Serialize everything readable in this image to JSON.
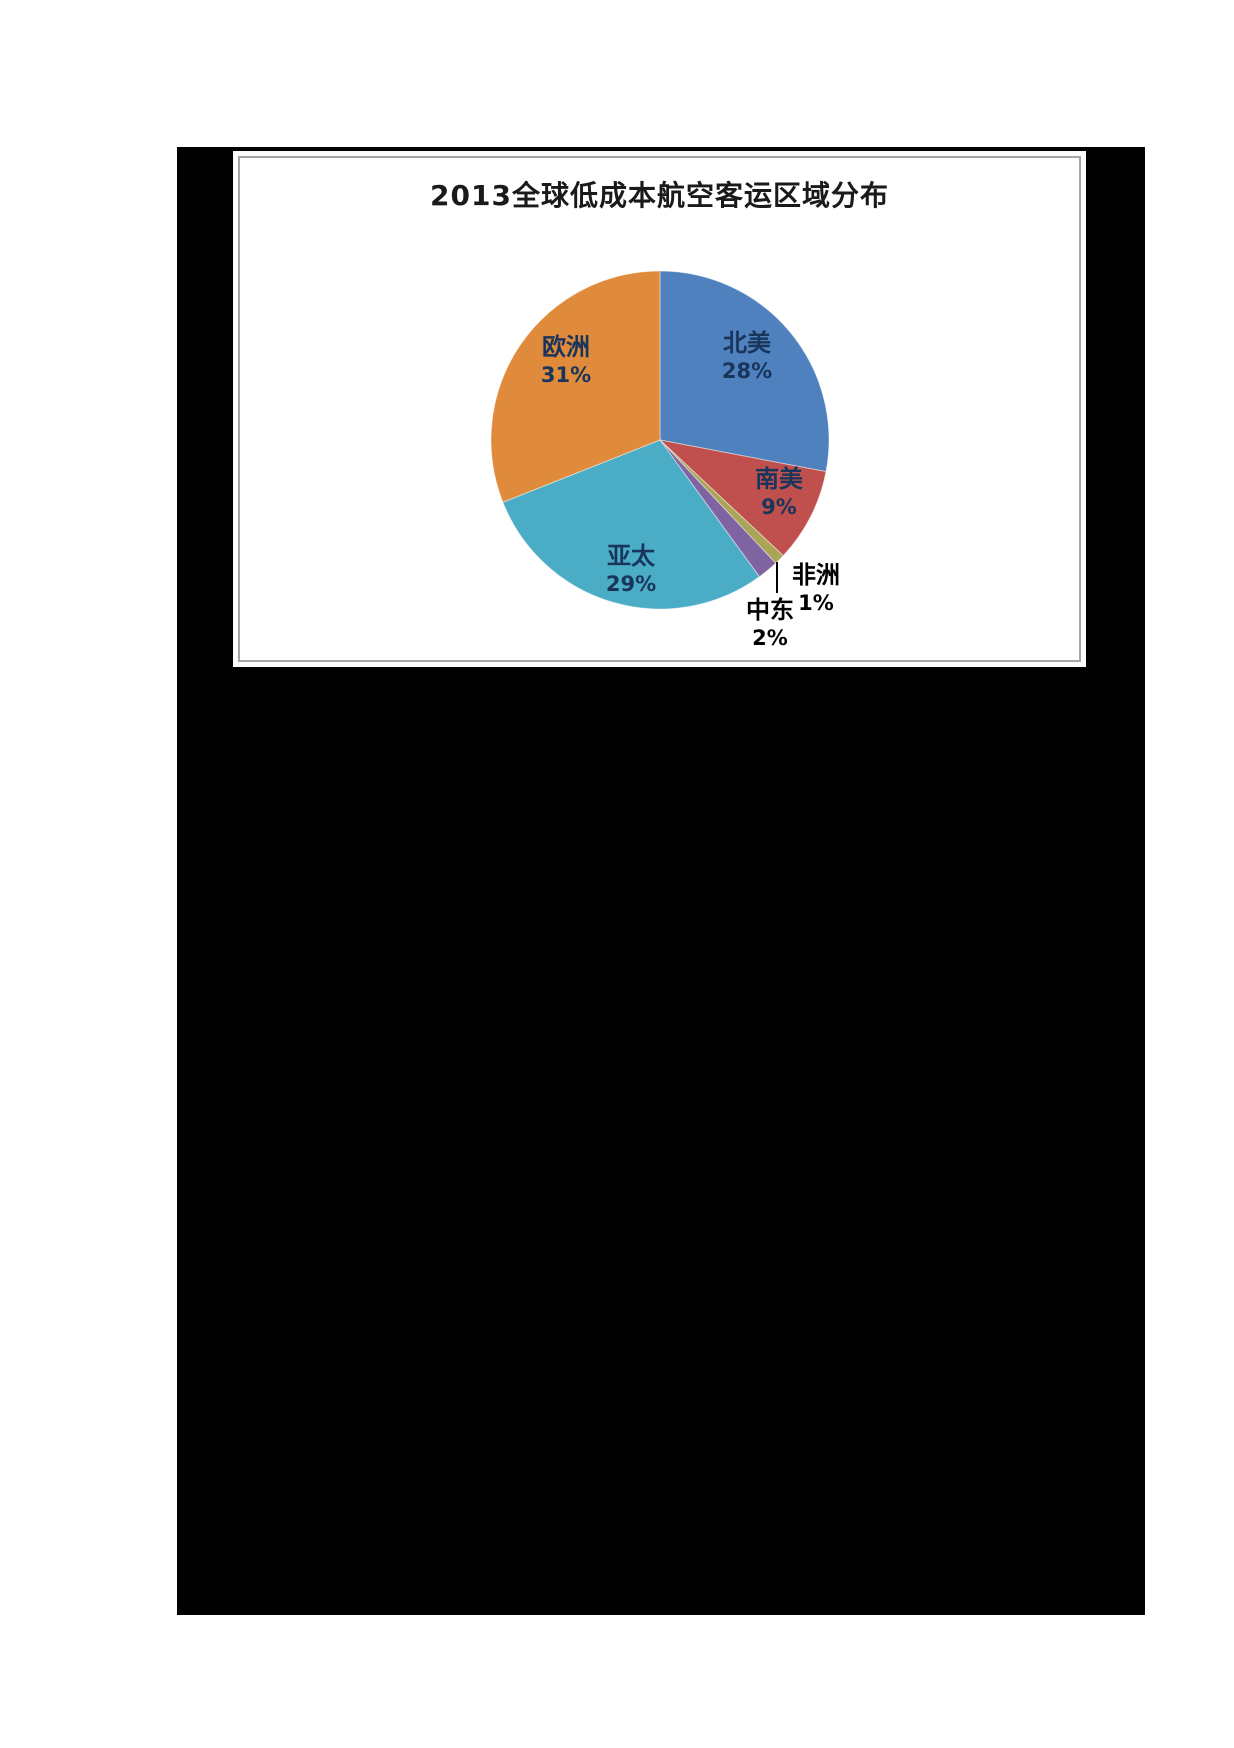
{
  "page": {
    "background_color": "#ffffff",
    "black_region_color": "#000000",
    "chart_box_border_color": "#a6a6a6"
  },
  "chart_data": {
    "type": "pie",
    "title": "2013全球低成本航空客运区域分布",
    "legend": "none",
    "start_angle_deg": 0,
    "direction": "clockwise",
    "value_unit": "%",
    "label_text_color_inside": "#1a355b",
    "label_text_color_outside": "#000000",
    "slices": [
      {
        "label": "北美",
        "value": 28,
        "color": "#4e81bd",
        "label_position": "inside"
      },
      {
        "label": "南美",
        "value": 9,
        "color": "#c0504d",
        "label_position": "inside"
      },
      {
        "label": "非洲",
        "value": 1,
        "color": "#aaa456",
        "label_position": "outside",
        "leader_line": true
      },
      {
        "label": "中东",
        "value": 2,
        "color": "#8064a2",
        "label_position": "outside"
      },
      {
        "label": "亚太",
        "value": 29,
        "color": "#4bacc6",
        "label_position": "inside"
      },
      {
        "label": "欧洲",
        "value": 31,
        "color": "#e08b3c",
        "label_position": "inside"
      }
    ]
  }
}
